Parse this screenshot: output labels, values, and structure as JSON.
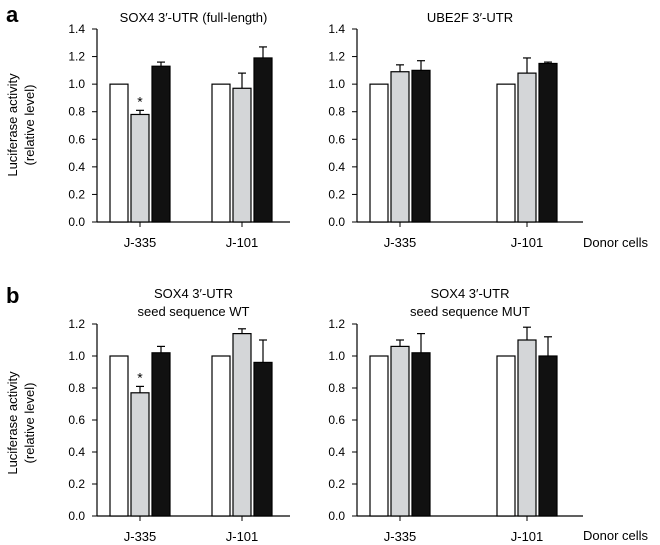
{
  "rows": [
    {
      "letter": "a",
      "ylabel_line1": "Luciferase activity",
      "ylabel_line2": "(relative level)",
      "donor_label": "Donor cells"
    },
    {
      "letter": "b",
      "ylabel_line1": "Luciferase activity",
      "ylabel_line2": "(relative level)",
      "donor_label": "Donor cells"
    }
  ],
  "colors": {
    "white_bar": "#ffffff",
    "grey_bar": "#d4d6d8",
    "black_bar": "#111111",
    "stroke": "#000000"
  },
  "chart_data": [
    {
      "type": "bar",
      "panel": "a",
      "title_lines": [
        "SOX4 3′-UTR (full-length)"
      ],
      "categories": [
        "J-335",
        "J-101"
      ],
      "series": [
        {
          "fill": "white",
          "values": [
            1.0,
            1.0
          ],
          "errors": [
            0,
            0
          ]
        },
        {
          "fill": "grey",
          "values": [
            0.78,
            0.97
          ],
          "errors": [
            0.03,
            0.11
          ]
        },
        {
          "fill": "black",
          "values": [
            1.13,
            1.19
          ],
          "errors": [
            0.03,
            0.08
          ]
        }
      ],
      "significance": [
        {
          "category": 0,
          "series": 1,
          "mark": "*"
        }
      ],
      "ylim": [
        0,
        1.4
      ],
      "yticks": [
        "0.0",
        "0.2",
        "0.4",
        "0.6",
        "0.8",
        "1.0",
        "1.2",
        "1.4"
      ],
      "ylabel": "Luciferase activity (relative level)",
      "xlabel": ""
    },
    {
      "type": "bar",
      "panel": "a",
      "title_lines": [
        "UBE2F 3′-UTR"
      ],
      "categories": [
        "J-335",
        "J-101"
      ],
      "series": [
        {
          "fill": "white",
          "values": [
            1.0,
            1.0
          ],
          "errors": [
            0,
            0
          ]
        },
        {
          "fill": "grey",
          "values": [
            1.09,
            1.08
          ],
          "errors": [
            0.05,
            0.11
          ]
        },
        {
          "fill": "black",
          "values": [
            1.1,
            1.15
          ],
          "errors": [
            0.07,
            0.01
          ]
        }
      ],
      "significance": [],
      "ylim": [
        0,
        1.4
      ],
      "yticks": [
        "0.0",
        "0.2",
        "0.4",
        "0.6",
        "0.8",
        "1.0",
        "1.2",
        "1.4"
      ],
      "ylabel": "",
      "xlabel": "Donor cells"
    },
    {
      "type": "bar",
      "panel": "b",
      "title_lines": [
        "SOX4 3′-UTR",
        "seed sequence WT"
      ],
      "categories": [
        "J-335",
        "J-101"
      ],
      "series": [
        {
          "fill": "white",
          "values": [
            1.0,
            1.0
          ],
          "errors": [
            0,
            0
          ]
        },
        {
          "fill": "grey",
          "values": [
            0.77,
            1.14
          ],
          "errors": [
            0.04,
            0.03
          ]
        },
        {
          "fill": "black",
          "values": [
            1.02,
            0.96
          ],
          "errors": [
            0.04,
            0.14
          ]
        }
      ],
      "significance": [
        {
          "category": 0,
          "series": 1,
          "mark": "*"
        }
      ],
      "ylim": [
        0,
        1.2
      ],
      "yticks": [
        "0.0",
        "0.2",
        "0.4",
        "0.6",
        "0.8",
        "1.0",
        "1.2"
      ],
      "ylabel": "Luciferase activity (relative level)",
      "xlabel": ""
    },
    {
      "type": "bar",
      "panel": "b",
      "title_lines": [
        "SOX4 3′-UTR",
        "seed sequence MUT"
      ],
      "categories": [
        "J-335",
        "J-101"
      ],
      "series": [
        {
          "fill": "white",
          "values": [
            1.0,
            1.0
          ],
          "errors": [
            0,
            0
          ]
        },
        {
          "fill": "grey",
          "values": [
            1.06,
            1.1
          ],
          "errors": [
            0.04,
            0.08
          ]
        },
        {
          "fill": "black",
          "values": [
            1.02,
            1.0
          ],
          "errors": [
            0.12,
            0.12
          ]
        }
      ],
      "significance": [],
      "ylim": [
        0,
        1.2
      ],
      "yticks": [
        "0.0",
        "0.2",
        "0.4",
        "0.6",
        "0.8",
        "1.0",
        "1.2"
      ],
      "ylabel": "",
      "xlabel": "Donor cells"
    }
  ]
}
